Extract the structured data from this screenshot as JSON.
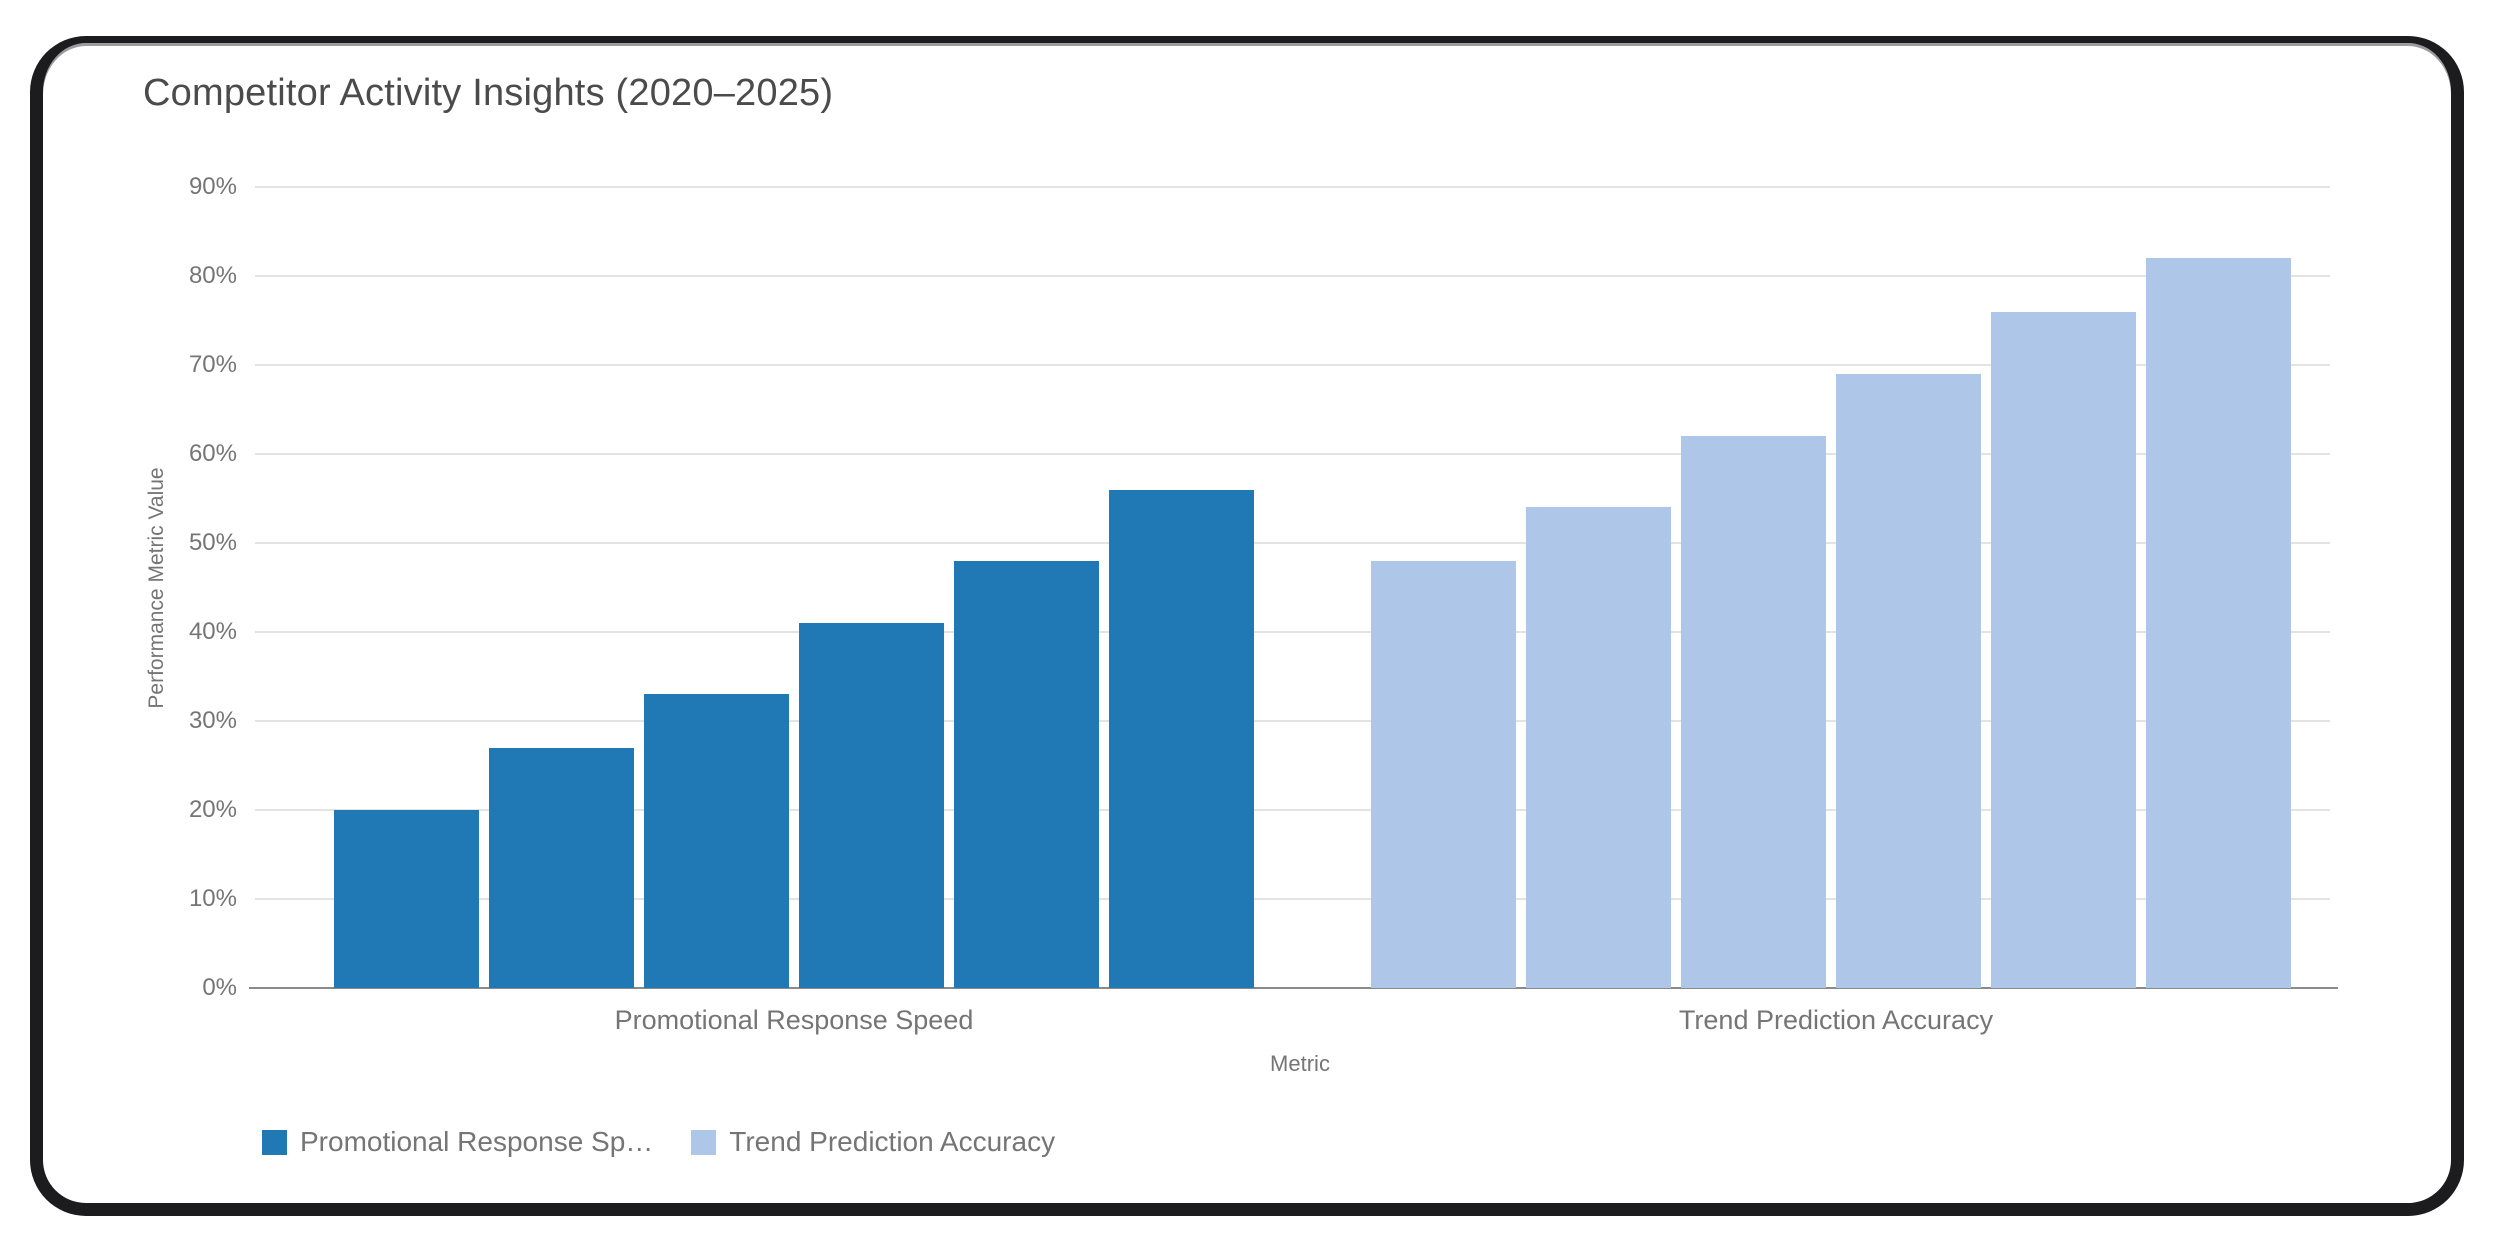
{
  "page": {
    "title": "Competitor Activity Insights (2020–2025)"
  },
  "chart_data": {
    "type": "bar",
    "title": "Competitor Activity Insights (2020–2025)",
    "xlabel": "Metric",
    "ylabel": "Performance Metric Value",
    "categories": [
      "Promotional Response Speed",
      "Trend Prediction Accuracy"
    ],
    "bars_per_category": 6,
    "series": [
      {
        "name": "Promotional Response Speed",
        "color": "#2078B4",
        "values": [
          20,
          27,
          33,
          41,
          48,
          56
        ]
      },
      {
        "name": "Trend Prediction Accuracy",
        "color": "#AEC7E8",
        "values": [
          48,
          54,
          62,
          69,
          76,
          82
        ]
      }
    ],
    "unit": "%",
    "ylim": [
      0,
      90
    ],
    "y_ticks": [
      "0%",
      "10%",
      "20%",
      "30%",
      "40%",
      "50%",
      "60%",
      "70%",
      "80%",
      "90%"
    ],
    "grid": true,
    "legend_position": "bottom"
  },
  "legend": {
    "items": [
      {
        "label": "Promotional Response Sp…",
        "color": "#2078B4"
      },
      {
        "label": "Trend Prediction Accuracy",
        "color": "#AEC7E8"
      }
    ]
  },
  "colors": {
    "frame": "#1c1c1e",
    "title_text": "#4b4b4b",
    "axis_text": "#757575",
    "gridline": "#e3e3e3",
    "axis_line": "#8a8a8a",
    "background": "#ffffff"
  }
}
